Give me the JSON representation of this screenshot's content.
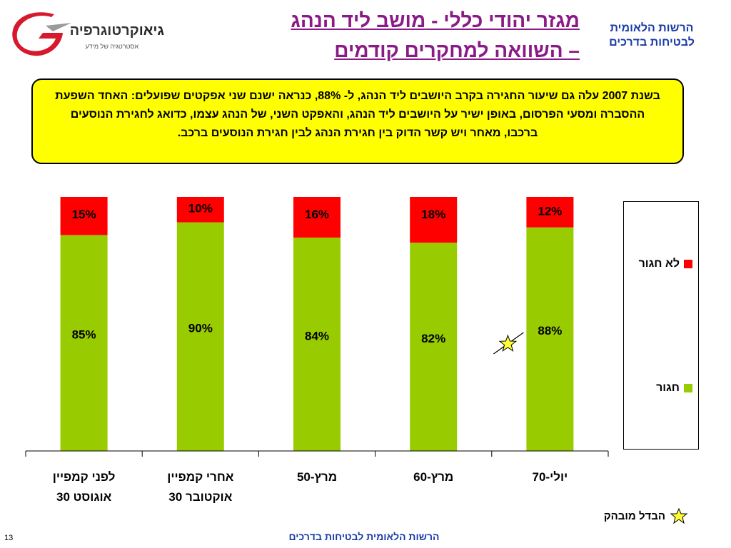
{
  "header": {
    "logo_brand_bold": "גיאו",
    "logo_brand_rest": "קרטוגרפיה",
    "logo_tagline": "אסטרטגיה של מידע",
    "title_line1_part1": "מגזר יהודי כללי - ",
    "title_line1_part2": "מושב ליד הנהג",
    "title_line2": "– השוואה למחקרים קודמים",
    "org_name": "הרשות הלאומית לבטיחות בדרכים"
  },
  "note": {
    "text": "בשנת 2007 עלה גם שיעור החגירה בקרב היושבים ליד הנהג, ל- 88%, כנראה ישנם שני אפקטים שפועלים: האחד השפעת ההסברה ומסעי הפרסום, באופן ישיר על היושבים ליד הנהג, והאפקט השני, של הנהג עצמו, כדואג לחגירת הנוסעים ברכבו, מאחר ויש קשר הדוק בין חגירת הנהג לבין חגירת הנוסעים ברכב."
  },
  "chart_data": {
    "type": "bar",
    "stacked": true,
    "categories": [
      "לפני קמפיין 30 אוגוסט",
      "אחרי קמפיין 30 אוקטובר",
      "מרץ-50",
      "מרץ-60",
      "יולי-70"
    ],
    "category_lines": [
      [
        "לפני קמפיין",
        "אוגוסט  30"
      ],
      [
        "אחרי  קמפיין",
        "אוקטובר 30"
      ],
      [
        "מרץ-50"
      ],
      [
        "מרץ-60"
      ],
      [
        "יולי-70"
      ]
    ],
    "series": [
      {
        "name": "חגור",
        "values": [
          85,
          90,
          84,
          82,
          88
        ],
        "labels": [
          "85%",
          "90%",
          "84%",
          "82%",
          "88%"
        ],
        "color": "#99cc00"
      },
      {
        "name": "לא חגור",
        "values": [
          15,
          10,
          16,
          18,
          12
        ],
        "labels": [
          "15%",
          "10%",
          "16%",
          "18%",
          "12%"
        ],
        "color": "#ff0000"
      }
    ],
    "ylim": [
      0,
      100
    ],
    "legend_position": "right",
    "grid": false,
    "highlight_category_index": 4
  },
  "star_note": "הבדל מובהק",
  "footer": "הרשות הלאומית לבטיחות בדרכים",
  "page_number": "13",
  "colors": {
    "title": "#8a1a86",
    "org": "#1a3aa8",
    "note_bg": "#ffff00",
    "logo_red": "#d7192d",
    "star": "#ffff33"
  }
}
